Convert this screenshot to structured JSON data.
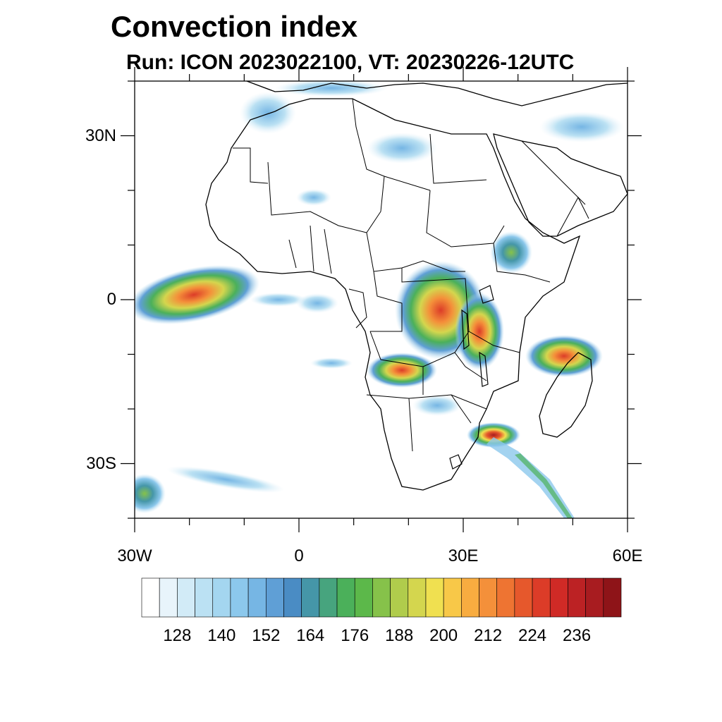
{
  "title": "Convection index",
  "subtitle": "Run: ICON 2023022100,  VT: 20230226-12UTC",
  "map": {
    "lon_range": [
      -30,
      60
    ],
    "lat_range": [
      -40,
      40
    ],
    "lat_ticks": [
      {
        "value": 30,
        "label": "30N"
      },
      {
        "value": 0,
        "label": "0"
      },
      {
        "value": -30,
        "label": "30S"
      }
    ],
    "lon_ticks": [
      {
        "value": -30,
        "label": "30W"
      },
      {
        "value": 0,
        "label": "0"
      },
      {
        "value": 30,
        "label": "30E"
      },
      {
        "value": 60,
        "label": "60E"
      }
    ],
    "convection_areas": [
      {
        "region": "tropical-atlantic",
        "lon": -22,
        "lat": 1,
        "level": "high"
      },
      {
        "region": "congo-basin",
        "lon": 26,
        "lat": -2,
        "level": "high"
      },
      {
        "region": "angola",
        "lon": 18,
        "lat": -13,
        "level": "high"
      },
      {
        "region": "madagascar-north",
        "lon": 48,
        "lat": -11,
        "level": "high"
      },
      {
        "region": "mozambique-coast",
        "lon": 35,
        "lat": -26,
        "level": "very-high"
      },
      {
        "region": "ethiopia",
        "lon": 38,
        "lat": 8,
        "level": "medium"
      },
      {
        "region": "arabia",
        "lon": 50,
        "lat": 30,
        "level": "low"
      },
      {
        "region": "sahara",
        "lon": 16,
        "lat": 28,
        "level": "low"
      },
      {
        "region": "south-atlantic",
        "lon": -15,
        "lat": -32,
        "level": "low"
      }
    ]
  },
  "colorbar": {
    "colors": [
      "#ffffff",
      "#e8f4fb",
      "#d2ebf7",
      "#bbe1f3",
      "#a4d6f0",
      "#8cc8ec",
      "#76b6e4",
      "#5f9fd6",
      "#4a8cc4",
      "#4596a8",
      "#47a47e",
      "#4bb05a",
      "#5cb84a",
      "#86c24a",
      "#b0cc4c",
      "#d4d64e",
      "#f0e050",
      "#f8c848",
      "#f8ac40",
      "#f4903a",
      "#ee7432",
      "#e6582c",
      "#dc3c28",
      "#d02a26",
      "#bc2224",
      "#a81c20",
      "#8e1418"
    ],
    "tick_labels": [
      "128",
      "140",
      "152",
      "164",
      "176",
      "188",
      "200",
      "212",
      "224",
      "236"
    ]
  }
}
